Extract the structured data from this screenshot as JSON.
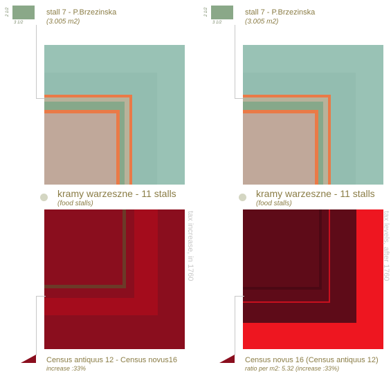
{
  "panels": [
    {
      "stall_dim_h": "2 1/2",
      "stall_dim_w": "3 1/2",
      "stall_title": "stall 7 - P.Brzezinska",
      "stall_area": "(3.005 m2)",
      "group_title": "kramy warzeszne - 11 stalls",
      "group_sub": "(food stalls)",
      "side_label": "tax increase, in 1760",
      "census_title": "Census antiquus 12 - Census novus16",
      "census_sub": "increase :33%"
    },
    {
      "stall_dim_h": "2 1/2",
      "stall_dim_w": "3 1/2",
      "stall_title": "stall 7 - P.Brzezinska",
      "stall_area": "(3.005 m2)",
      "group_title": "kramy warzeszne - 11 stalls",
      "group_sub": "(food stalls)",
      "side_label": "tax levels, after 1760",
      "census_title": "Census novus 16 (Census antiquus 12)",
      "census_sub": "ratio per m2: 5.32 (increase :33%)"
    }
  ],
  "colors": {
    "teal": "#99c2b5",
    "teal_inner": "#93bdb0",
    "rose": "#c0a89a",
    "orange": "#ea7a47",
    "green_band": "#86a88a",
    "sage": "#8aa888",
    "dark_red": "#8a0e1e",
    "red": "#a40c1c",
    "maroon": "#5e0b18",
    "bright_red": "#ee1620"
  }
}
